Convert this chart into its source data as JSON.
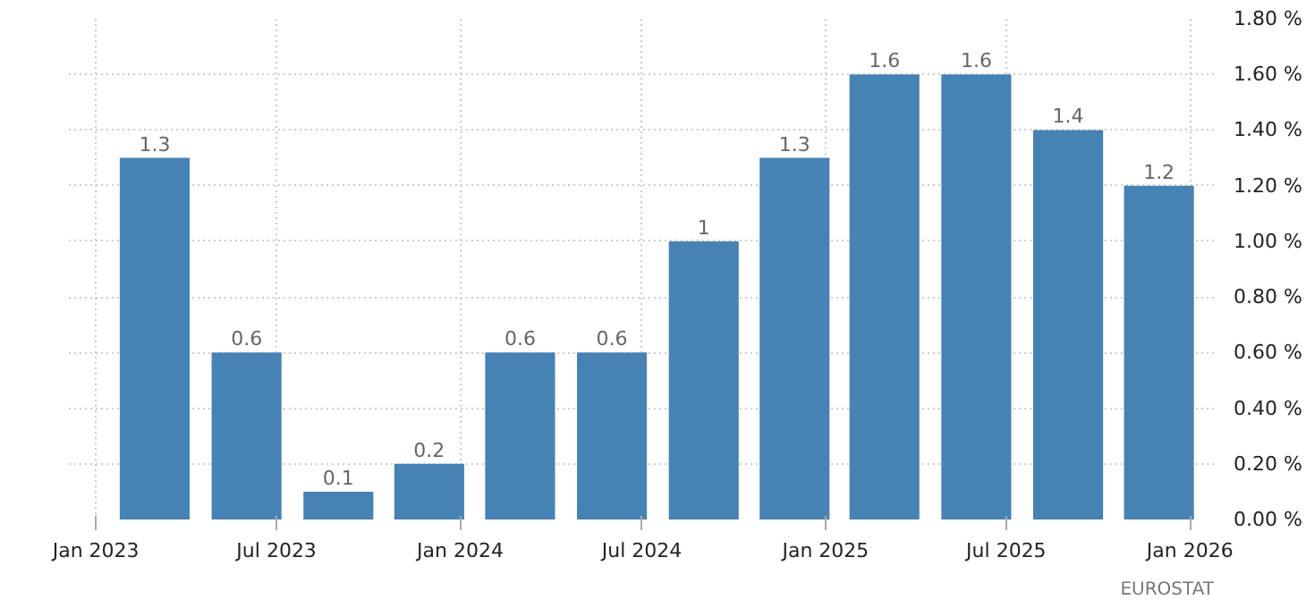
{
  "chart_data": {
    "type": "bar",
    "x": [
      "2023-03",
      "2023-06",
      "2023-09",
      "2023-12",
      "2024-03",
      "2024-06",
      "2024-09",
      "2024-12",
      "2025-03",
      "2025-06",
      "2025-09",
      "2025-12"
    ],
    "values": [
      1.3,
      0.6,
      0.1,
      0.2,
      0.6,
      0.6,
      1,
      1.3,
      1.6,
      1.6,
      1.4,
      1.2
    ],
    "color": "#4682b4",
    "data_labels": true,
    "xlim": [
      "2022-12-05",
      "2026-01-25"
    ],
    "xticks": [
      {
        "value": "2023-01",
        "label": "Jan 2023"
      },
      {
        "value": "2023-07",
        "label": "Jul 2023"
      },
      {
        "value": "2024-01",
        "label": "Jan 2024"
      },
      {
        "value": "2024-07",
        "label": "Jul 2024"
      },
      {
        "value": "2025-01",
        "label": "Jan 2025"
      },
      {
        "value": "2025-07",
        "label": "Jul 2025"
      },
      {
        "value": "2026-01",
        "label": "Jan 2026"
      }
    ],
    "ylim": [
      0,
      1.8
    ],
    "yticks": [
      {
        "value": 0,
        "label": "0.00 %"
      },
      {
        "value": 0.2,
        "label": "0.20 %"
      },
      {
        "value": 0.4,
        "label": "0.40 %"
      },
      {
        "value": 0.6,
        "label": "0.60 %"
      },
      {
        "value": 0.8,
        "label": "0.80 %"
      },
      {
        "value": 1.0,
        "label": "1.00 %"
      },
      {
        "value": 1.2,
        "label": "1.20 %"
      },
      {
        "value": 1.4,
        "label": "1.40 %"
      },
      {
        "value": 1.6,
        "label": "1.60 %"
      },
      {
        "value": 1.8,
        "label": "1.80 %"
      }
    ],
    "grid": true,
    "annotations": [
      "EUROSTAT"
    ]
  }
}
